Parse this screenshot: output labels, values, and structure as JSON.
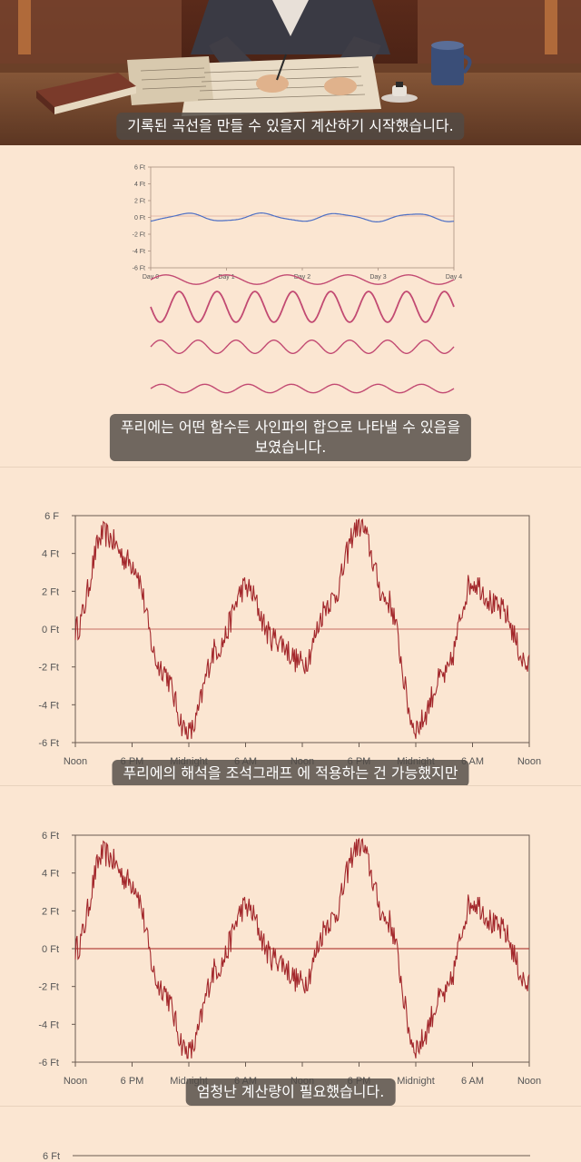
{
  "captions": {
    "c1": "기록된 곡선을 만들 수 있을지 계산하기 시작했습니다.",
    "c2_line1": "푸리에는 어떤 함수든 사인파의 합으로 나타낼 수 있음을",
    "c2_line2": "보였습니다.",
    "c3": "푸리에의 해석을 조석그래프 에 적용하는 건 가능했지만",
    "c4": "엄청난 계산량이 필요했습니다."
  },
  "colors": {
    "background": "#fbe6d2",
    "blue_curve": "#4d6fc4",
    "wave_curve": "#c24a72",
    "tide_curve": "#a3282c",
    "zero_line": "#b5473f"
  },
  "chart_data": [
    {
      "type": "line",
      "title": "",
      "ylabel": "",
      "yticks": [
        "6 Ft",
        "4 Ft",
        "2 Ft",
        "0 Ft",
        "-2 Ft",
        "-4 Ft",
        "-6 Ft"
      ],
      "xticks": [
        "Day 0",
        "Day 1",
        "Day 2",
        "Day 3",
        "Day 4"
      ],
      "ylim": [
        -6,
        6
      ],
      "x": [
        0,
        0.5,
        1,
        1.5,
        2,
        2.5,
        3,
        3.5,
        4
      ],
      "series": [
        {
          "values": [
            -0.3,
            0.5,
            -0.3,
            0.5,
            -0.4,
            0.5,
            -0.3,
            0.4,
            -0.3
          ]
        }
      ],
      "component_waves": [
        {
          "cycles": 5,
          "amplitude_ratio": 0.2
        },
        {
          "cycles": 8,
          "amplitude_ratio": 0.65
        },
        {
          "cycles": 8,
          "amplitude_ratio": 0.28
        },
        {
          "cycles": 7,
          "amplitude_ratio": 0.18
        }
      ]
    },
    {
      "type": "line",
      "title": "",
      "yticks": [
        "6 F",
        "4 Ft",
        "2 Ft",
        "0 Ft",
        "-2 Ft",
        "-4 Ft",
        "-6 Ft"
      ],
      "xticks": [
        "Noon",
        "6 PM",
        "Midnight",
        "6 AM",
        "Noon",
        "6 PM",
        "Midnight",
        "6 AM",
        "Noon"
      ],
      "ylim": [
        -6,
        6
      ],
      "x_hours": [
        0,
        3,
        6,
        9,
        12,
        15,
        18,
        21,
        24,
        27,
        30,
        33,
        36,
        39,
        42,
        45,
        48
      ],
      "series": [
        {
          "values": [
            0,
            5.0,
            3.5,
            -2.0,
            -5.5,
            -1.0,
            2.2,
            -0.5,
            -1.8,
            1.5,
            5.5,
            1.5,
            -5.2,
            -2.5,
            2.5,
            1.0,
            -2.0
          ]
        }
      ]
    },
    {
      "type": "line",
      "title": "",
      "yticks": [
        "6 Ft",
        "4 Ft",
        "2 Ft",
        "0 Ft",
        "-2 Ft",
        "-4 Ft",
        "-6 Ft"
      ],
      "xticks": [
        "Noon",
        "6 PM",
        "Midnight",
        "6 AM",
        "Noon",
        "6 PM",
        "Midnight",
        "6 AM",
        "Noon"
      ],
      "ylim": [
        -6,
        6
      ],
      "x_hours": [
        0,
        3,
        6,
        9,
        12,
        15,
        18,
        21,
        24,
        27,
        30,
        33,
        36,
        39,
        42,
        45,
        48
      ],
      "series": [
        {
          "values": [
            0,
            5.0,
            3.5,
            -2.0,
            -5.5,
            -1.0,
            2.2,
            -0.5,
            -1.8,
            1.5,
            5.5,
            1.5,
            -5.2,
            -2.5,
            2.5,
            1.0,
            -2.0
          ]
        }
      ]
    },
    {
      "type": "line",
      "yticks": [
        "6 Ft"
      ]
    }
  ]
}
